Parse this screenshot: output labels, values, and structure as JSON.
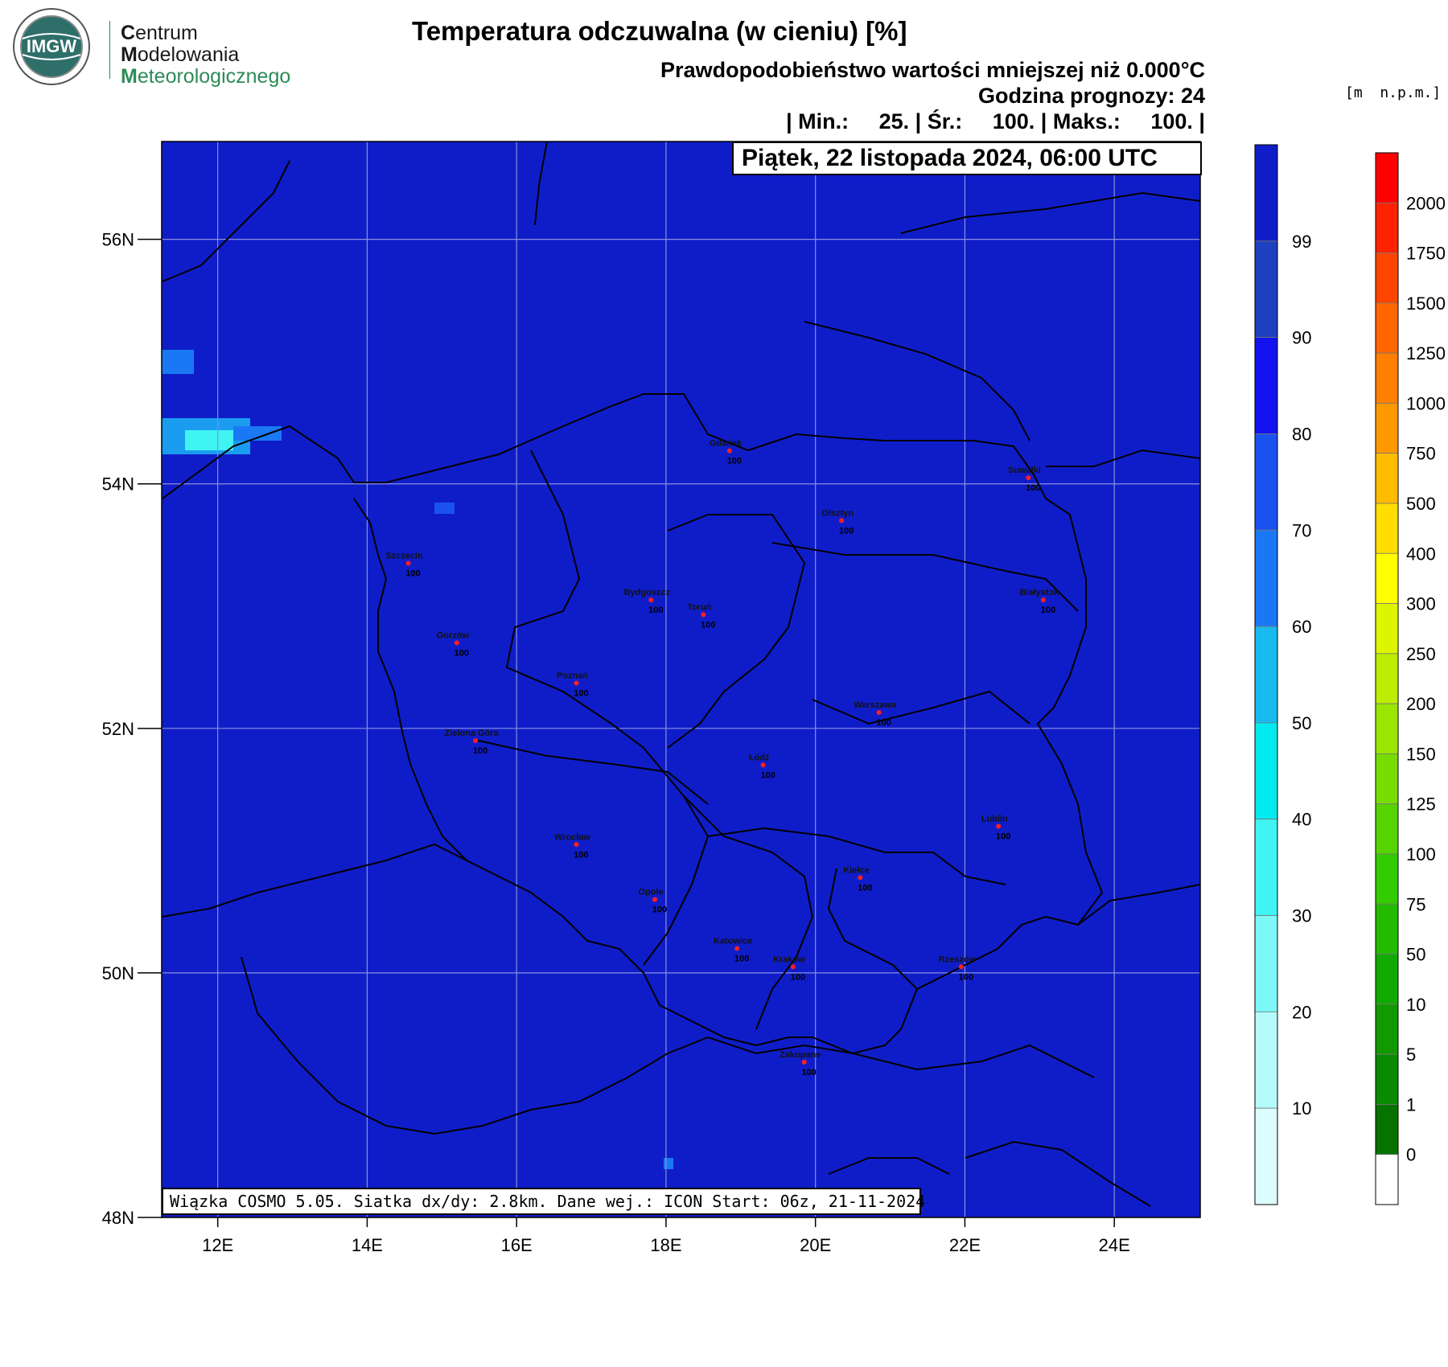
{
  "logo": {
    "badge": "IMGW",
    "line1_cap": "C",
    "line1_rest": "entrum",
    "line2_cap": "M",
    "line2_rest": "odelowania",
    "line3_cap": "M",
    "line3_rest": "eteorologicznego",
    "colors": {
      "green": "#2e8b57",
      "dark": "#1a1a1a"
    }
  },
  "header": {
    "title": "Temperatura odczuwalna (w cieniu) [%]",
    "line1": "Prawdopodobieństwo wartości mniejszej niż 0.000°C",
    "line2": "Godzina prognozy: 24",
    "line3": "| Min.:     25. | Śr.:     100. | Maks.:     100. |"
  },
  "datebox": "Piątek, 22 listopada 2024, 06:00 UTC",
  "footer": "Wiązka COSMO 5.05. Siatka dx/dy: 2.8km. Dane wej.: ICON Start: 06z, 21-11-2024",
  "map": {
    "fill_color": "#0f1dc8",
    "lon_ticks": [
      "12E",
      "14E",
      "16E",
      "18E",
      "20E",
      "22E",
      "24E"
    ],
    "lat_ticks": [
      "56N",
      "54N",
      "52N",
      "50N",
      "48N"
    ],
    "lon_range": [
      11.25,
      25.15
    ],
    "lat_range": [
      48.0,
      56.8
    ],
    "cities": [
      {
        "name": "Gdańsk",
        "value": "100",
        "lon": 18.85,
        "lat": 54.27
      },
      {
        "name": "Suwałki",
        "value": "100",
        "lon": 22.85,
        "lat": 54.05
      },
      {
        "name": "Olsztyn",
        "value": "100",
        "lon": 20.35,
        "lat": 53.7
      },
      {
        "name": "Szczecin",
        "value": "100",
        "lon": 14.55,
        "lat": 53.35
      },
      {
        "name": "Bydgoszcz",
        "value": "100",
        "lon": 17.8,
        "lat": 53.05
      },
      {
        "name": "Toruń",
        "value": "100",
        "lon": 18.5,
        "lat": 52.93
      },
      {
        "name": "Białystok",
        "value": "100",
        "lon": 23.05,
        "lat": 53.05
      },
      {
        "name": "Gorzów",
        "value": "100",
        "lon": 15.2,
        "lat": 52.7
      },
      {
        "name": "Poznań",
        "value": "100",
        "lon": 16.8,
        "lat": 52.37
      },
      {
        "name": "Warszawa",
        "value": "100",
        "lon": 20.85,
        "lat": 52.13
      },
      {
        "name": "Zielona Góra",
        "value": "100",
        "lon": 15.45,
        "lat": 51.9
      },
      {
        "name": "Łódź",
        "value": "100",
        "lon": 19.3,
        "lat": 51.7
      },
      {
        "name": "Lublin",
        "value": "100",
        "lon": 22.45,
        "lat": 51.2
      },
      {
        "name": "Wrocław",
        "value": "100",
        "lon": 16.8,
        "lat": 51.05
      },
      {
        "name": "Kielce",
        "value": "100",
        "lon": 20.6,
        "lat": 50.78
      },
      {
        "name": "Opole",
        "value": "100",
        "lon": 17.85,
        "lat": 50.6
      },
      {
        "name": "Katowice",
        "value": "100",
        "lon": 18.95,
        "lat": 50.2
      },
      {
        "name": "Kraków",
        "value": "100",
        "lon": 19.7,
        "lat": 50.05
      },
      {
        "name": "Rzeszów",
        "value": "100",
        "lon": 21.95,
        "lat": 50.05
      },
      {
        "name": "Zakopane",
        "value": "100",
        "lon": 19.85,
        "lat": 49.27
      }
    ]
  },
  "colorbar_prob": {
    "labels": [
      "99",
      "90",
      "80",
      "70",
      "60",
      "50",
      "40",
      "30",
      "20",
      "10"
    ],
    "colors": [
      "#0f1dc8",
      "#1e3fbe",
      "#1212ee",
      "#1a52f0",
      "#1a78f5",
      "#18baf0",
      "#00eaf0",
      "#40f4f4",
      "#7cf8f8",
      "#b6fbfb",
      "#dcfdfd"
    ]
  },
  "colorbar_height": {
    "unit": "[m  n.p.m.]",
    "labels": [
      "2000",
      "1750",
      "1500",
      "1250",
      "1000",
      "750",
      "500",
      "400",
      "300",
      "250",
      "200",
      "150",
      "125",
      "100",
      "75",
      "50",
      "10",
      "5",
      "1",
      "0"
    ],
    "colors": [
      "#ff0000",
      "#ff2200",
      "#ff4400",
      "#ff6600",
      "#ff7f00",
      "#ff9900",
      "#ffbb00",
      "#ffdd00",
      "#ffff00",
      "#ddf500",
      "#bbee00",
      "#99e600",
      "#77dd00",
      "#55d400",
      "#33cc00",
      "#22bb00",
      "#11aa00",
      "#119900",
      "#0a8a00",
      "#067200",
      "#ffffff"
    ]
  }
}
